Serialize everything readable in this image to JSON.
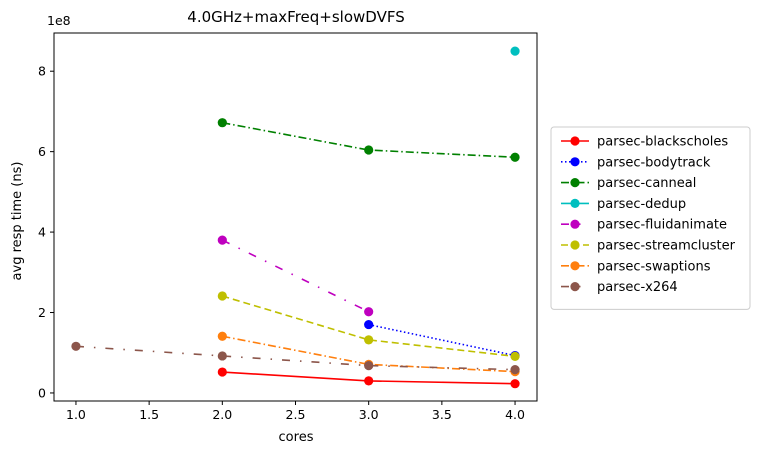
{
  "chart_data": {
    "type": "line",
    "title": "4.0GHz+maxFreq+slowDVFS",
    "xlabel": "cores",
    "ylabel": "avg resp time (ns)",
    "y_offset_text": "1e8",
    "y_scale": 100000000,
    "xlim": [
      0.85,
      4.15
    ],
    "ylim": [
      -0.2,
      8.95
    ],
    "xticks": [
      "1.0",
      "1.5",
      "2.0",
      "2.5",
      "3.0",
      "3.5",
      "4.0"
    ],
    "yticks": [
      "0",
      "2",
      "4",
      "6",
      "8"
    ],
    "legend_position": "center-right-outside",
    "series": [
      {
        "name": "parsec-blackscholes",
        "color": "#ff0000",
        "linestyle": "solid",
        "x": [
          2,
          3,
          4
        ],
        "y": [
          0.52,
          0.3,
          0.23
        ]
      },
      {
        "name": "parsec-bodytrack",
        "color": "#0000ff",
        "linestyle": "dotted",
        "x": [
          3,
          4
        ],
        "y": [
          1.7,
          0.93
        ]
      },
      {
        "name": "parsec-canneal",
        "color": "#008000",
        "linestyle": "dashdot",
        "x": [
          2,
          3,
          4
        ],
        "y": [
          6.72,
          6.04,
          5.86
        ]
      },
      {
        "name": "parsec-dedup",
        "color": "#00bfbf",
        "linestyle": "solid",
        "x": [
          4
        ],
        "y": [
          8.5
        ]
      },
      {
        "name": "parsec-fluidanimate",
        "color": "#bf00bf",
        "linestyle": "dashdot-loose",
        "x": [
          2,
          3
        ],
        "y": [
          3.8,
          2.02
        ]
      },
      {
        "name": "parsec-streamcluster",
        "color": "#bfbf00",
        "linestyle": "dashed",
        "x": [
          2,
          3,
          4
        ],
        "y": [
          2.41,
          1.32,
          0.91
        ]
      },
      {
        "name": "parsec-swaptions",
        "color": "#ff7f0e",
        "linestyle": "dashdot",
        "x": [
          2,
          3,
          4
        ],
        "y": [
          1.41,
          0.71,
          0.53
        ]
      },
      {
        "name": "parsec-x264",
        "color": "#8c564b",
        "linestyle": "dashdot-loose",
        "x": [
          1,
          2,
          3,
          4
        ],
        "y": [
          1.16,
          0.92,
          0.68,
          0.58
        ]
      }
    ]
  }
}
